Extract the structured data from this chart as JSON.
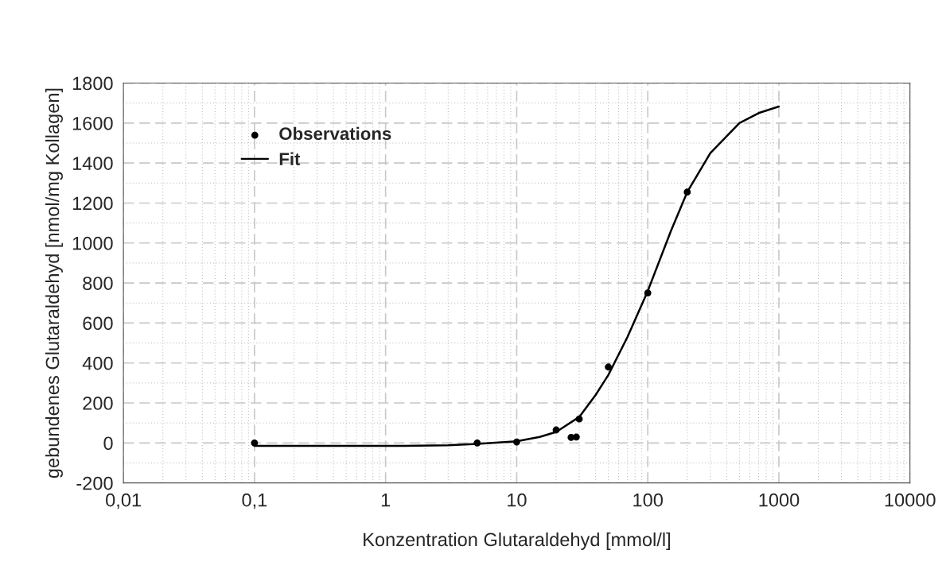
{
  "chart_data": {
    "type": "scatter",
    "xlabel": "Konzentration Glutaraldehyd [mmol/l]",
    "ylabel": "gebundenes Glutaraldehyd [nmol/mg Kollagen]",
    "log": "x",
    "xlim": [
      0.01,
      10000
    ],
    "xticks": [
      {
        "value": 0.01,
        "label": "0,01"
      },
      {
        "value": 0.1,
        "label": "0,1"
      },
      1,
      10,
      100,
      1000,
      10000
    ],
    "ylim": [
      -200,
      1800
    ],
    "yticks": [
      -200,
      0,
      200,
      400,
      600,
      800,
      1000,
      1200,
      1400,
      1600,
      1800
    ],
    "grid": true,
    "legend": "top left",
    "series": [
      {
        "name": "Observations",
        "type": "scatter",
        "color": "#000000",
        "marker": "circle",
        "x": [
          0.1,
          5,
          10,
          20,
          26,
          28.5,
          30,
          50,
          100,
          200
        ],
        "values": [
          0,
          0,
          5,
          65,
          28,
          30,
          120,
          380,
          750,
          1255
        ]
      },
      {
        "name": "Fit",
        "type": "line",
        "color": "#000000",
        "line_style": "solid",
        "x": [
          0.1,
          1,
          3,
          5,
          10,
          15,
          20,
          30,
          40,
          50,
          70,
          100,
          150,
          200,
          300,
          500,
          700,
          1000
        ],
        "values": [
          -15,
          -15,
          -12,
          -5,
          8,
          30,
          55,
          130,
          240,
          340,
          530,
          760,
          1060,
          1255,
          1450,
          1600,
          1650,
          1683
        ]
      }
    ]
  }
}
